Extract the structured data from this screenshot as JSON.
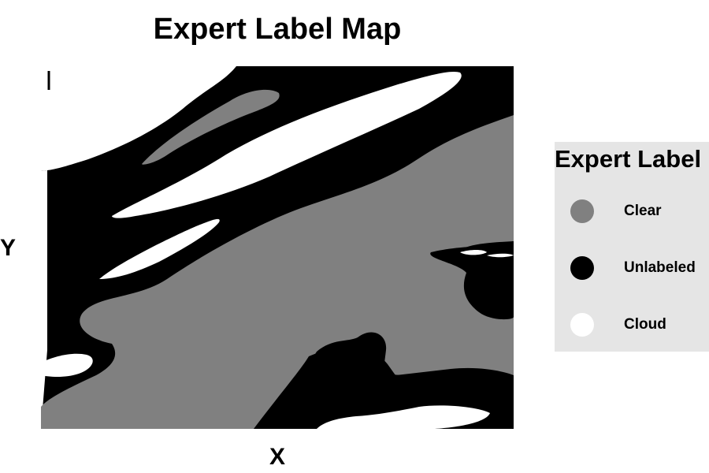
{
  "chart_data": {
    "type": "heatmap",
    "title": "Expert Label Map",
    "xlabel": "X",
    "ylabel": "Y",
    "grid": false,
    "legend": {
      "title": "Expert Label",
      "placement": "right",
      "entries": [
        {
          "label": "Clear",
          "color": "#808080"
        },
        {
          "label": "Unlabeled",
          "color": "#000000"
        },
        {
          "label": "Cloud",
          "color": "#ffffff"
        }
      ]
    },
    "background_class": "Unlabeled"
  }
}
